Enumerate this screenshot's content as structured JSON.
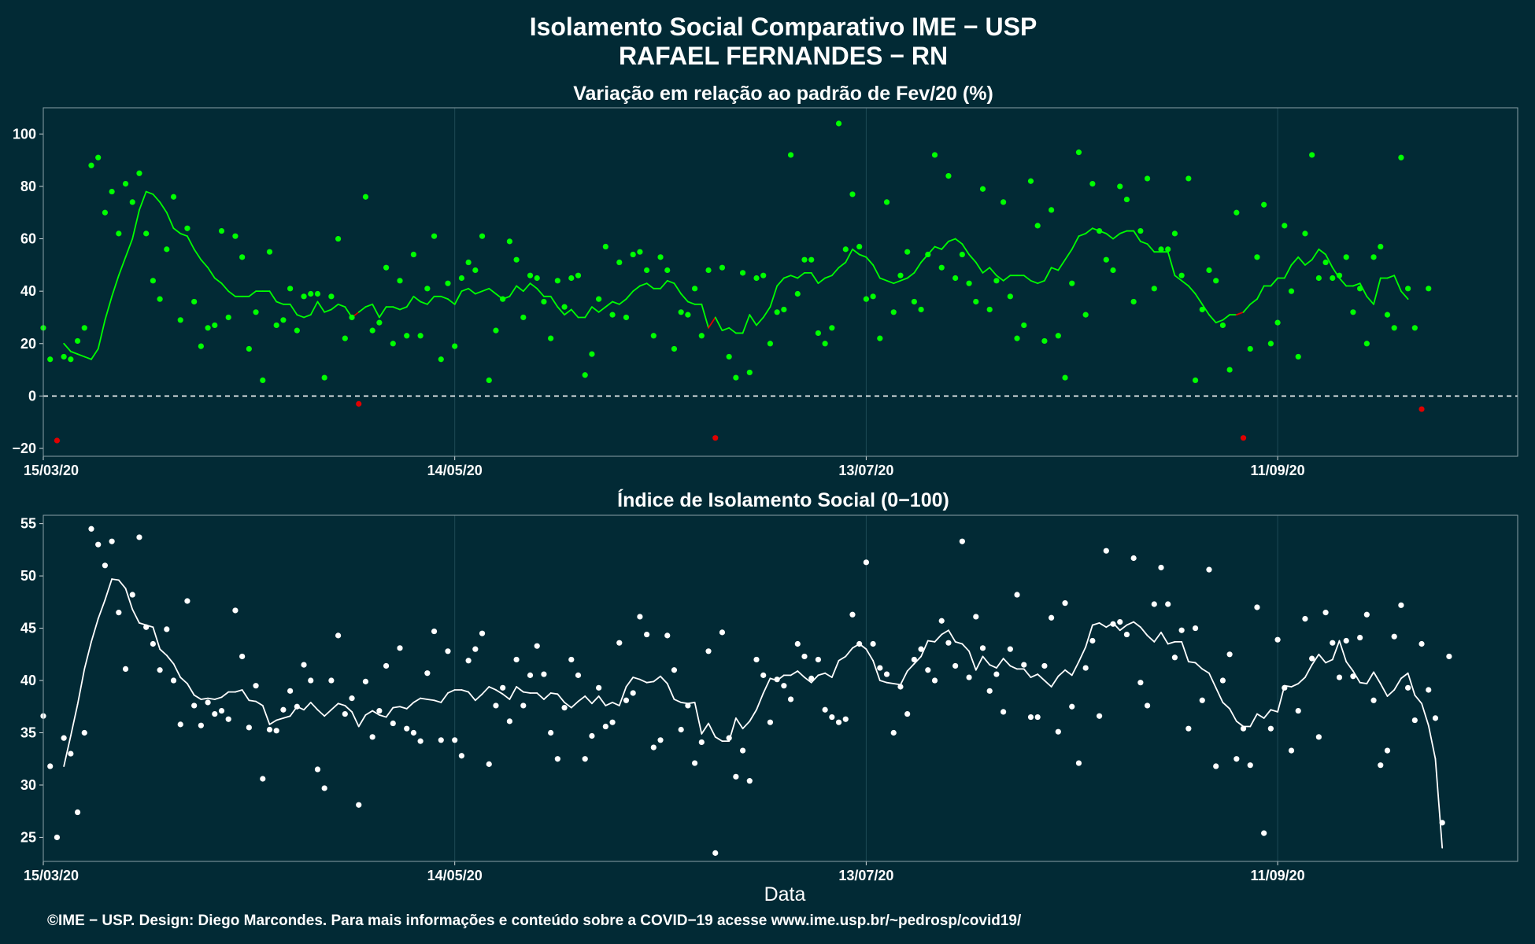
{
  "title_line1": "Isolamento Social Comparativo IME − USP",
  "title_line2": "RAFAEL FERNANDES − RN",
  "footer": "©IME − USP. Design: Diego Marcondes. Para mais informações e conteúdo sobre a COVID−19 acesse www.ime.usp.br/~pedrosp/covid19/",
  "colors": {
    "background": "#022a35",
    "positive_series": "#00ff00",
    "negative_series": "#e00000",
    "index_series": "#ffffff",
    "grid": "#1e4a55",
    "zero_line": "#ffffff"
  },
  "chart_data": [
    {
      "type": "scatter",
      "title": "Variação em relação ao padrão de Fev/20 (%)",
      "xlabel": "",
      "ylabel": "",
      "x_type": "date",
      "x_start": "2020-03-15",
      "x_end": "2020-10-16",
      "xlim": [
        "2020-03-15",
        "2020-10-16"
      ],
      "ylim": [
        -23,
        110
      ],
      "x_ticks": [
        "15/03/20",
        "14/05/20",
        "13/07/20",
        "11/09/20"
      ],
      "y_ticks": [
        -20,
        0,
        20,
        40,
        60,
        80,
        100
      ],
      "reference_line": 0,
      "grid": true,
      "point_color_rule": "green for values >= 0, red for values < 0",
      "series": [
        {
          "kind": "points",
          "values": [
            26,
            14,
            -17,
            15,
            14,
            21,
            26,
            88,
            91,
            70,
            78,
            62,
            81,
            74,
            85,
            62,
            44,
            37,
            56,
            76,
            29,
            64,
            36,
            19,
            26,
            27,
            63,
            30,
            61,
            53,
            18,
            32,
            6,
            55,
            27,
            29,
            41,
            25,
            38,
            39,
            39,
            7,
            38,
            60,
            22,
            30,
            -3,
            76,
            25,
            28,
            49,
            20,
            44,
            23,
            54,
            23,
            41,
            61,
            14,
            43,
            19,
            45,
            51,
            48,
            61,
            6,
            25,
            37,
            59,
            52,
            30,
            46,
            45,
            36,
            22,
            44,
            34,
            45,
            46,
            8,
            16,
            37,
            57,
            31,
            51,
            30,
            54,
            55,
            48,
            23,
            53,
            48,
            18,
            32,
            31,
            41,
            23,
            48,
            -16,
            49,
            15,
            7,
            47,
            9,
            45,
            46,
            20,
            32,
            33,
            92,
            39,
            52,
            52,
            24,
            20,
            26,
            104,
            56,
            77,
            57,
            37,
            38,
            22,
            74,
            32,
            46,
            55,
            36,
            33,
            54,
            92,
            49,
            84,
            45,
            54,
            43,
            36,
            79,
            33,
            44,
            74,
            38,
            22,
            27,
            82,
            65,
            21,
            71,
            23,
            7,
            43,
            93,
            31,
            81,
            63,
            52,
            48,
            80,
            75,
            36,
            63,
            83,
            41,
            56,
            56,
            62,
            46,
            83,
            6,
            33,
            48,
            44,
            27,
            10,
            70,
            -16,
            18,
            53,
            73,
            20,
            28,
            65,
            40,
            15,
            62,
            92,
            45,
            51,
            45,
            46,
            53,
            32,
            41,
            20,
            53,
            57,
            31,
            26,
            91,
            41,
            26,
            -5,
            41
          ]
        },
        {
          "kind": "moving_average",
          "values": [
            null,
            null,
            null,
            20,
            17,
            16,
            15,
            14,
            18,
            29,
            38,
            46,
            53,
            60,
            71,
            78,
            77,
            74,
            70,
            64,
            62,
            61,
            56,
            52,
            49,
            45,
            43,
            40,
            38,
            38,
            38,
            40,
            40,
            40,
            36,
            35,
            35,
            31,
            30,
            31,
            36,
            32,
            33,
            35,
            34,
            30,
            32,
            34,
            35,
            30,
            34,
            34,
            33,
            34,
            38,
            36,
            35,
            38,
            38,
            37,
            35,
            40,
            41,
            39,
            40,
            41,
            39,
            37,
            38,
            42,
            40,
            43,
            41,
            38,
            38,
            34,
            31,
            33,
            30,
            30,
            34,
            32,
            34,
            36,
            35,
            37,
            40,
            42,
            43,
            41,
            41,
            44,
            43,
            39,
            36,
            35,
            35,
            26,
            30,
            25,
            26,
            24,
            24,
            31,
            27,
            30,
            34,
            42,
            45,
            46,
            45,
            47,
            47,
            43,
            45,
            46,
            49,
            51,
            56,
            54,
            53,
            50,
            45,
            44,
            43,
            44,
            45,
            47,
            51,
            54,
            57,
            56,
            59,
            60,
            58,
            54,
            51,
            47,
            49,
            46,
            44,
            46,
            46,
            46,
            44,
            43,
            44,
            49,
            48,
            52,
            56,
            61,
            62,
            64,
            63,
            62,
            60,
            62,
            63,
            63,
            59,
            58,
            55,
            55,
            55,
            46,
            44,
            42,
            39,
            35,
            31,
            28,
            29,
            31,
            31,
            32,
            35,
            37,
            42,
            42,
            45,
            45,
            50,
            53,
            50,
            52,
            56,
            54,
            49,
            45,
            42,
            42,
            43,
            38,
            35,
            45,
            45,
            46,
            40,
            37
          ]
        }
      ]
    },
    {
      "type": "scatter",
      "title": "Índice de Isolamento Social (0−100)",
      "xlabel": "Data",
      "ylabel": "",
      "x_type": "date",
      "x_start": "2020-03-15",
      "x_end": "2020-10-16",
      "xlim": [
        "2020-03-15",
        "2020-10-16"
      ],
      "ylim": [
        22.7,
        55.8
      ],
      "x_ticks": [
        "15/03/20",
        "14/05/20",
        "13/07/20",
        "11/09/20"
      ],
      "y_ticks": [
        25,
        30,
        35,
        40,
        45,
        50,
        55
      ],
      "grid": true,
      "series": [
        {
          "kind": "points",
          "values": [
            36.6,
            31.8,
            25.0,
            34.5,
            33.0,
            27.4,
            35.0,
            54.5,
            53.0,
            51.0,
            53.3,
            46.5,
            41.1,
            48.2,
            53.7,
            45.1,
            43.5,
            41.0,
            44.9,
            40.0,
            35.8,
            47.6,
            37.6,
            35.7,
            37.9,
            36.8,
            37.1,
            36.3,
            46.7,
            42.3,
            35.5,
            39.5,
            30.6,
            35.3,
            35.2,
            37.2,
            39.0,
            37.5,
            41.5,
            40.0,
            31.5,
            29.7,
            40.0,
            44.3,
            36.8,
            38.3,
            28.1,
            39.9,
            34.6,
            37.1,
            41.4,
            35.9,
            43.1,
            35.4,
            35.0,
            34.2,
            40.7,
            44.7,
            34.3,
            42.8,
            34.3,
            32.8,
            41.9,
            43.0,
            44.5,
            32.0,
            37.6,
            39.3,
            36.1,
            42.0,
            37.6,
            40.5,
            43.3,
            40.6,
            35.0,
            32.5,
            37.4,
            42.0,
            40.5,
            32.5,
            34.7,
            39.3,
            35.6,
            36.0,
            43.6,
            38.1,
            38.8,
            46.1,
            44.4,
            33.6,
            34.3,
            44.3,
            41.0,
            35.3,
            37.6,
            32.1,
            34.1,
            42.8,
            23.5,
            44.6,
            34.5,
            30.8,
            33.3,
            30.4,
            42.0,
            40.5,
            36.0,
            40.1,
            39.5,
            38.2,
            43.5,
            42.3,
            40.2,
            42.0,
            37.2,
            36.5,
            36.0,
            36.3,
            46.3,
            43.5,
            51.3,
            43.5,
            41.2,
            40.6,
            35.0,
            39.4,
            36.8,
            42.0,
            43.0,
            41.0,
            40.0,
            45.7,
            43.6,
            41.4,
            53.3,
            40.3,
            46.1,
            43.1,
            39.0,
            40.6,
            37.0,
            43.0,
            48.2,
            41.5,
            36.5,
            36.5,
            41.4,
            46.0,
            35.1,
            47.4,
            37.5,
            32.1,
            41.2,
            43.8,
            36.6,
            52.4,
            45.4,
            45.6,
            44.4,
            51.7,
            39.8,
            37.6,
            47.3,
            50.8,
            47.3,
            42.2,
            44.8,
            35.4,
            45.0,
            38.1,
            50.6,
            31.8,
            40.0,
            42.5,
            32.5,
            35.4,
            31.9,
            47.0,
            25.4,
            35.4,
            43.9,
            39.3,
            33.3,
            37.1,
            45.9,
            42.1,
            34.6,
            46.5,
            43.6,
            40.3,
            43.8,
            40.4,
            44.1,
            46.3,
            38.1,
            31.9,
            33.3,
            44.2,
            47.2,
            39.3,
            36.2,
            43.5,
            39.1,
            36.4,
            26.4,
            42.3
          ]
        },
        {
          "kind": "moving_average",
          "values": [
            null,
            null,
            null,
            31.8,
            34.7,
            37.7,
            41.1,
            43.7,
            45.9,
            47.7,
            49.7,
            49.6,
            48.8,
            46.8,
            45.5,
            45.3,
            45.1,
            43.0,
            42.4,
            41.6,
            40.3,
            39.7,
            38.6,
            38.2,
            38.3,
            38.2,
            38.4,
            38.9,
            38.9,
            39.1,
            38.1,
            38.0,
            37.6,
            35.8,
            36.2,
            36.4,
            36.6,
            37.5,
            37.2,
            37.9,
            37.2,
            36.6,
            37.2,
            37.8,
            37.6,
            37.0,
            35.6,
            36.7,
            37.1,
            36.7,
            36.5,
            37.4,
            37.5,
            37.3,
            37.9,
            38.3,
            38.2,
            38.1,
            37.9,
            38.8,
            39.1,
            39.1,
            38.9,
            38.1,
            38.7,
            39.4,
            39.1,
            38.7,
            38.2,
            39.4,
            38.9,
            38.8,
            38.8,
            38.2,
            38.8,
            38.7,
            37.9,
            37.4,
            38.0,
            38.5,
            37.8,
            38.5,
            37.6,
            37.9,
            37.6,
            39.4,
            40.3,
            40.1,
            39.8,
            39.9,
            40.4,
            39.7,
            38.2,
            37.9,
            37.8,
            37.9,
            34.9,
            35.9,
            34.6,
            34.2,
            34.2,
            36.4,
            35.4,
            36.1,
            37.2,
            38.8,
            40.2,
            40.0,
            40.5,
            40.5,
            40.9,
            40.3,
            39.8,
            40.5,
            40.7,
            40.3,
            41.9,
            42.3,
            43.1,
            43.5,
            43.0,
            41.9,
            40.0,
            39.8,
            39.7,
            39.6,
            40.9,
            41.6,
            42.3,
            43.8,
            43.7,
            44.4,
            44.8,
            43.7,
            43.5,
            42.8,
            41.0,
            42.3,
            41.5,
            41.2,
            42.1,
            41.4,
            41.1,
            41.1,
            40.3,
            40.6,
            40.0,
            39.4,
            40.4,
            41.0,
            40.5,
            41.8,
            43.2,
            45.3,
            45.5,
            45.1,
            45.5,
            44.8,
            45.3,
            45.6,
            45.1,
            44.3,
            43.7,
            44.6,
            43.5,
            43.7,
            43.7,
            41.8,
            41.7,
            41.1,
            40.7,
            39.3,
            37.9,
            37.3,
            36.1,
            35.6,
            35.6,
            36.8,
            36.4,
            37.2,
            37.0,
            39.5,
            39.4,
            39.7,
            40.3,
            41.5,
            42.5,
            41.7,
            42.0,
            43.8,
            41.8,
            40.9,
            39.8,
            39.7,
            40.8,
            39.7,
            38.5,
            39.1,
            40.2,
            40.7,
            38.6,
            37.8,
            35.7,
            32.5,
            24.0
          ]
        }
      ]
    }
  ]
}
